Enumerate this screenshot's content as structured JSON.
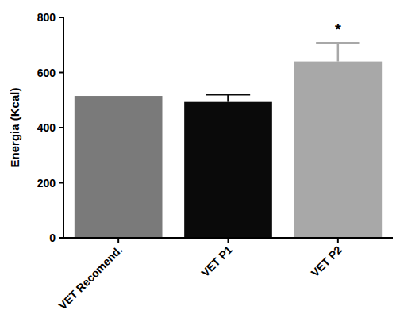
{
  "chart_data": {
    "type": "bar",
    "y_label": "Energia (Kcal)",
    "categories": [
      "VET Recomend.",
      "VET P1",
      "VET P2"
    ],
    "values": [
      515,
      493,
      640
    ],
    "errors": [
      null,
      27,
      67
    ],
    "colors": [
      "#7a7a7a",
      "#0a0a0a",
      "#a8a8a8"
    ],
    "ylim": [
      0,
      800
    ],
    "yticks": [
      0,
      200,
      400,
      600,
      800
    ],
    "grid": false,
    "annotations": [
      {
        "category": "VET P2",
        "text": "*"
      }
    ]
  }
}
